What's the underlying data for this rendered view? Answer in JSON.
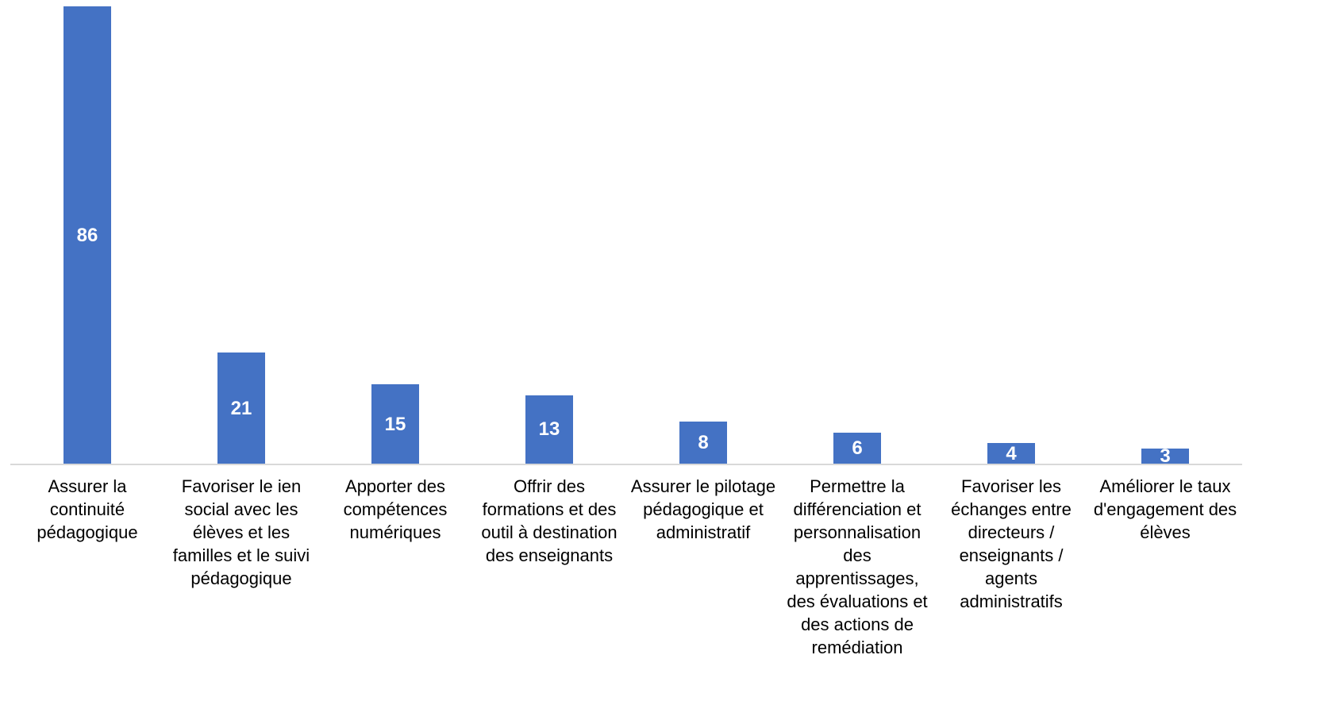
{
  "chart_data": {
    "type": "bar",
    "categories": [
      "Assurer la continuité pédagogique",
      "Favoriser le ien social avec les élèves et les familles et le suivi pédagogique",
      "Apporter des compétences numériques",
      "Offrir des formations et des outil à destination des  enseignants",
      "Assurer le pilotage pédagogique et administratif",
      "Permettre la différenciation et personnalisation des apprentissages, des évaluations et des actions de remédiation",
      "Favoriser les échanges entre directeurs / enseignants / agents administratifs",
      "Améliorer le taux d'engagement des élèves"
    ],
    "values": [
      86,
      21,
      15,
      13,
      8,
      6,
      4,
      3
    ],
    "color": "#4472c4",
    "ylim": [
      0,
      86
    ]
  }
}
